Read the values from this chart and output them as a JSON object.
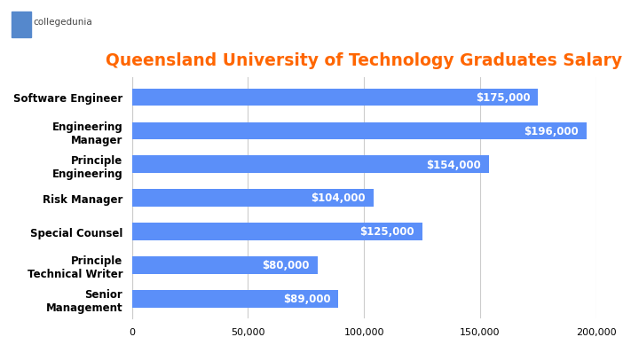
{
  "title": "Queensland University of Technology Graduates Salary",
  "title_color": "#FF6600",
  "title_fontsize": 13.5,
  "categories": [
    "Senior\nManagement",
    "Principle\nTechnical Writer",
    "Special Counsel",
    "Risk Manager",
    "Principle\nEngineering",
    "Engineering\nManager",
    "Software Engineer"
  ],
  "values": [
    89000,
    80000,
    125000,
    104000,
    154000,
    196000,
    175000
  ],
  "bar_color": "#5B8FF9",
  "label_color": "#FFFFFF",
  "label_fontsize": 8.5,
  "xlim": [
    0,
    200000
  ],
  "xticks": [
    0,
    50000,
    100000,
    150000,
    200000
  ],
  "xtick_labels": [
    "0",
    "50,000",
    "100,000",
    "150,000",
    "200,000"
  ],
  "bar_height": 0.52,
  "background_color": "#FFFFFF",
  "grid_color": "#CCCCCC",
  "logo_text": "collegedunia",
  "logo_fontsize": 7.5
}
